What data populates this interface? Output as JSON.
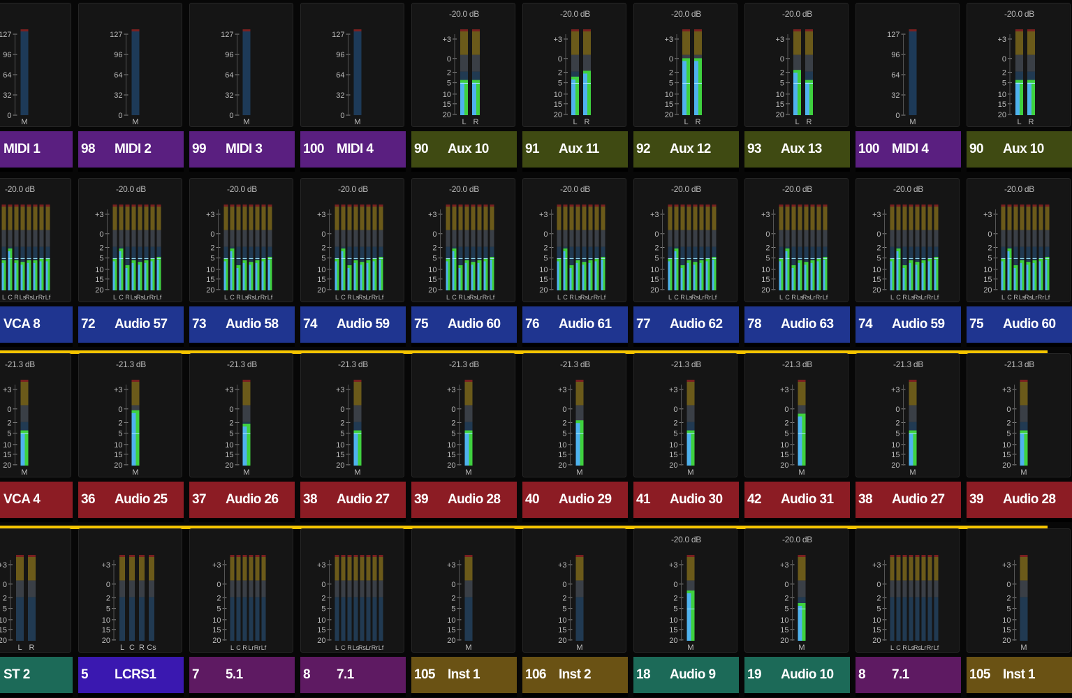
{
  "palette": {
    "purple": "#5a1f80",
    "olive": "#3f4a12",
    "blue": "#1f3590",
    "red": "#8c1c24",
    "green": "#1c6a58",
    "violet": "#3a18b0",
    "magenta": "#5e1a62",
    "gold": "#6a5214",
    "separator": "#f4c400",
    "meter_green": "#3fd13f",
    "meter_cyan": "#4fb2ee"
  },
  "rows": [
    [
      {
        "num": "",
        "name": "MIDI 1",
        "color": "purple",
        "meter": "midi",
        "peak": "",
        "scale": [
          "127",
          "96",
          "64",
          "32",
          "0"
        ],
        "labels": [
          "M"
        ],
        "levels": [
          0
        ]
      },
      {
        "num": "98",
        "name": "MIDI 2",
        "color": "purple",
        "meter": "midi",
        "peak": "",
        "scale": [
          "127",
          "96",
          "64",
          "32",
          "0"
        ],
        "labels": [
          "M"
        ],
        "levels": [
          0
        ]
      },
      {
        "num": "99",
        "name": "MIDI 3",
        "color": "purple",
        "meter": "midi",
        "peak": "",
        "scale": [
          "127",
          "96",
          "64",
          "32",
          "0"
        ],
        "labels": [
          "M"
        ],
        "levels": [
          0
        ]
      },
      {
        "num": "100",
        "name": "MIDI 4",
        "color": "purple",
        "meter": "midi",
        "peak": "",
        "scale": [
          "127",
          "96",
          "64",
          "32",
          "0"
        ],
        "labels": [
          "M"
        ],
        "levels": [
          0
        ]
      },
      {
        "num": "90",
        "name": "Aux 10",
        "color": "olive",
        "meter": "audio",
        "peak": "-20.0 dB",
        "scale": [
          "+3",
          "0",
          "2",
          "5",
          "10",
          "15",
          "20"
        ],
        "labels": [
          "L",
          "R"
        ],
        "levels": [
          0.42,
          0.42
        ]
      },
      {
        "num": "91",
        "name": "Aux 11",
        "color": "olive",
        "meter": "audio",
        "peak": "-20.0 dB",
        "scale": [
          "+3",
          "0",
          "2",
          "5",
          "10",
          "15",
          "20"
        ],
        "labels": [
          "L",
          "R"
        ],
        "levels": [
          0.46,
          0.53
        ]
      },
      {
        "num": "92",
        "name": "Aux 12",
        "color": "olive",
        "meter": "audio",
        "peak": "-20.0 dB",
        "scale": [
          "+3",
          "0",
          "2",
          "5",
          "10",
          "15",
          "20"
        ],
        "labels": [
          "L",
          "R"
        ],
        "levels": [
          0.68,
          0.68
        ]
      },
      {
        "num": "93",
        "name": "Aux 13",
        "color": "olive",
        "meter": "audio",
        "peak": "-20.0 dB",
        "scale": [
          "+3",
          "0",
          "2",
          "5",
          "10",
          "15",
          "20"
        ],
        "labels": [
          "L",
          "R"
        ],
        "levels": [
          0.54,
          0.42
        ]
      },
      {
        "num": "100",
        "name": "MIDI 4",
        "color": "purple",
        "meter": "midi",
        "peak": "",
        "scale": [
          "127",
          "96",
          "64",
          "32",
          "0"
        ],
        "labels": [
          "M"
        ],
        "levels": [
          0
        ]
      },
      {
        "num": "90",
        "name": "Aux 10",
        "color": "olive",
        "meter": "audio",
        "peak": "-20.0 dB",
        "scale": [
          "+3",
          "0",
          "2",
          "5",
          "10",
          "15",
          "20"
        ],
        "labels": [
          "L",
          "R"
        ],
        "levels": [
          0.42,
          0.42
        ]
      }
    ],
    [
      {
        "num": "",
        "name": "VCA 8",
        "color": "blue",
        "meter": "audio",
        "peak": "-20.0 dB",
        "scale": [
          "+3",
          "0",
          "2",
          "5",
          "10",
          "15",
          "20"
        ],
        "labels": [
          "L",
          "C",
          "R",
          "Ls",
          "Rs",
          "Lr",
          "Rr",
          "Lf"
        ],
        "levels": [
          0.36,
          0.5,
          0.36,
          0.34,
          0.36,
          0.36,
          0.38,
          0.38
        ]
      },
      {
        "num": "72",
        "name": "Audio 57",
        "color": "blue",
        "meter": "audio",
        "peak": "-20.0 dB",
        "scale": [
          "+3",
          "0",
          "2",
          "5",
          "10",
          "15",
          "20"
        ],
        "labels": [
          "L",
          "C",
          "R",
          "Ls",
          "Rs",
          "Lr",
          "Rr",
          "Lf"
        ],
        "levels": [
          0.38,
          0.5,
          0.3,
          0.36,
          0.34,
          0.36,
          0.38,
          0.4
        ]
      },
      {
        "num": "73",
        "name": "Audio 58",
        "color": "blue",
        "meter": "audio",
        "peak": "-20.0 dB",
        "scale": [
          "+3",
          "0",
          "2",
          "5",
          "10",
          "15",
          "20"
        ],
        "labels": [
          "L",
          "C",
          "R",
          "Ls",
          "Rs",
          "Lr",
          "Rr",
          "Lf"
        ],
        "levels": [
          0.38,
          0.5,
          0.3,
          0.36,
          0.34,
          0.36,
          0.38,
          0.4
        ]
      },
      {
        "num": "74",
        "name": "Audio 59",
        "color": "blue",
        "meter": "audio",
        "peak": "-20.0 dB",
        "scale": [
          "+3",
          "0",
          "2",
          "5",
          "10",
          "15",
          "20"
        ],
        "labels": [
          "L",
          "C",
          "R",
          "Ls",
          "Rs",
          "Lr",
          "Rr",
          "Lf"
        ],
        "levels": [
          0.38,
          0.5,
          0.3,
          0.36,
          0.34,
          0.36,
          0.38,
          0.4
        ]
      },
      {
        "num": "75",
        "name": "Audio 60",
        "color": "blue",
        "meter": "audio",
        "peak": "-20.0 dB",
        "scale": [
          "+3",
          "0",
          "2",
          "5",
          "10",
          "15",
          "20"
        ],
        "labels": [
          "L",
          "C",
          "R",
          "Ls",
          "Rs",
          "Lr",
          "Rr",
          "Lf"
        ],
        "levels": [
          0.38,
          0.5,
          0.3,
          0.36,
          0.34,
          0.36,
          0.38,
          0.4
        ]
      },
      {
        "num": "76",
        "name": "Audio 61",
        "color": "blue",
        "meter": "audio",
        "peak": "-20.0 dB",
        "scale": [
          "+3",
          "0",
          "2",
          "5",
          "10",
          "15",
          "20"
        ],
        "labels": [
          "L",
          "C",
          "R",
          "Ls",
          "Rs",
          "Lr",
          "Rr",
          "Lf"
        ],
        "levels": [
          0.38,
          0.5,
          0.3,
          0.36,
          0.34,
          0.36,
          0.38,
          0.4
        ]
      },
      {
        "num": "77",
        "name": "Audio 62",
        "color": "blue",
        "meter": "audio",
        "peak": "-20.0 dB",
        "scale": [
          "+3",
          "0",
          "2",
          "5",
          "10",
          "15",
          "20"
        ],
        "labels": [
          "L",
          "C",
          "R",
          "Ls",
          "Rs",
          "Lr",
          "Rr",
          "Lf"
        ],
        "levels": [
          0.38,
          0.5,
          0.3,
          0.36,
          0.34,
          0.36,
          0.38,
          0.4
        ]
      },
      {
        "num": "78",
        "name": "Audio 63",
        "color": "blue",
        "meter": "audio",
        "peak": "-20.0 dB",
        "scale": [
          "+3",
          "0",
          "2",
          "5",
          "10",
          "15",
          "20"
        ],
        "labels": [
          "L",
          "C",
          "R",
          "Ls",
          "Rs",
          "Lr",
          "Rr",
          "Lf"
        ],
        "levels": [
          0.38,
          0.5,
          0.3,
          0.36,
          0.34,
          0.36,
          0.38,
          0.4
        ]
      },
      {
        "num": "74",
        "name": "Audio 59",
        "color": "blue",
        "meter": "audio",
        "peak": "-20.0 dB",
        "scale": [
          "+3",
          "0",
          "2",
          "5",
          "10",
          "15",
          "20"
        ],
        "labels": [
          "L",
          "C",
          "R",
          "Ls",
          "Rs",
          "Lr",
          "Rr",
          "Lf"
        ],
        "levels": [
          0.38,
          0.5,
          0.3,
          0.36,
          0.34,
          0.36,
          0.38,
          0.4
        ]
      },
      {
        "num": "75",
        "name": "Audio 60",
        "color": "blue",
        "meter": "audio",
        "peak": "-20.0 dB",
        "scale": [
          "+3",
          "0",
          "2",
          "5",
          "10",
          "15",
          "20"
        ],
        "labels": [
          "L",
          "C",
          "R",
          "Ls",
          "Rs",
          "Lr",
          "Rr",
          "Lf"
        ],
        "levels": [
          0.38,
          0.5,
          0.3,
          0.36,
          0.34,
          0.36,
          0.38,
          0.4
        ]
      }
    ],
    [
      {
        "num": "",
        "name": "VCA 4",
        "color": "red",
        "meter": "audio",
        "peak": "-21.3 dB",
        "scale": [
          "+3",
          "0",
          "2",
          "5",
          "10",
          "15",
          "20"
        ],
        "labels": [
          "M"
        ],
        "levels": [
          0.42
        ]
      },
      {
        "num": "36",
        "name": "Audio 25",
        "color": "red",
        "meter": "audio",
        "peak": "-21.3 dB",
        "scale": [
          "+3",
          "0",
          "2",
          "5",
          "10",
          "15",
          "20"
        ],
        "labels": [
          "M"
        ],
        "levels": [
          0.66
        ]
      },
      {
        "num": "37",
        "name": "Audio 26",
        "color": "red",
        "meter": "audio",
        "peak": "-21.3 dB",
        "scale": [
          "+3",
          "0",
          "2",
          "5",
          "10",
          "15",
          "20"
        ],
        "labels": [
          "M"
        ],
        "levels": [
          0.5
        ]
      },
      {
        "num": "38",
        "name": "Audio 27",
        "color": "red",
        "meter": "audio",
        "peak": "-21.3 dB",
        "scale": [
          "+3",
          "0",
          "2",
          "5",
          "10",
          "15",
          "20"
        ],
        "labels": [
          "M"
        ],
        "levels": [
          0.42
        ]
      },
      {
        "num": "39",
        "name": "Audio 28",
        "color": "red",
        "meter": "audio",
        "peak": "-21.3 dB",
        "scale": [
          "+3",
          "0",
          "2",
          "5",
          "10",
          "15",
          "20"
        ],
        "labels": [
          "M"
        ],
        "levels": [
          0.42
        ]
      },
      {
        "num": "40",
        "name": "Audio 29",
        "color": "red",
        "meter": "audio",
        "peak": "-21.3 dB",
        "scale": [
          "+3",
          "0",
          "2",
          "5",
          "10",
          "15",
          "20"
        ],
        "labels": [
          "M"
        ],
        "levels": [
          0.54
        ]
      },
      {
        "num": "41",
        "name": "Audio 30",
        "color": "red",
        "meter": "audio",
        "peak": "-21.3 dB",
        "scale": [
          "+3",
          "0",
          "2",
          "5",
          "10",
          "15",
          "20"
        ],
        "labels": [
          "M"
        ],
        "levels": [
          0.42
        ]
      },
      {
        "num": "42",
        "name": "Audio 31",
        "color": "red",
        "meter": "audio",
        "peak": "-21.3 dB",
        "scale": [
          "+3",
          "0",
          "2",
          "5",
          "10",
          "15",
          "20"
        ],
        "labels": [
          "M"
        ],
        "levels": [
          0.62
        ]
      },
      {
        "num": "38",
        "name": "Audio 27",
        "color": "red",
        "meter": "audio",
        "peak": "-21.3 dB",
        "scale": [
          "+3",
          "0",
          "2",
          "5",
          "10",
          "15",
          "20"
        ],
        "labels": [
          "M"
        ],
        "levels": [
          0.42
        ]
      },
      {
        "num": "39",
        "name": "Audio 28",
        "color": "red",
        "meter": "audio",
        "peak": "-21.3 dB",
        "scale": [
          "+3",
          "0",
          "2",
          "5",
          "10",
          "15",
          "20"
        ],
        "labels": [
          "M"
        ],
        "levels": [
          0.42
        ]
      }
    ],
    [
      {
        "num": "",
        "name": "ST 2",
        "color": "green",
        "meter": "audio",
        "peak": "",
        "scale": [
          "+3",
          "0",
          "2",
          "5",
          "10",
          "15",
          "20"
        ],
        "labels": [
          "L",
          "R"
        ],
        "levels": [
          0,
          0
        ]
      },
      {
        "num": "5",
        "name": "LCRS1",
        "color": "violet",
        "meter": "audio",
        "peak": "",
        "scale": [
          "+3",
          "0",
          "2",
          "5",
          "10",
          "15",
          "20"
        ],
        "labels": [
          "L",
          "C",
          "R",
          "Cs"
        ],
        "levels": [
          0,
          0,
          0,
          0
        ]
      },
      {
        "num": "7",
        "name": "5.1",
        "color": "magenta",
        "meter": "audio",
        "peak": "",
        "scale": [
          "+3",
          "0",
          "2",
          "5",
          "10",
          "15",
          "20"
        ],
        "labels": [
          "L",
          "C",
          "R",
          "Lr",
          "Rr",
          "Lf"
        ],
        "levels": [
          0,
          0,
          0,
          0,
          0,
          0
        ]
      },
      {
        "num": "8",
        "name": "7.1",
        "color": "magenta",
        "meter": "audio",
        "peak": "",
        "scale": [
          "+3",
          "0",
          "2",
          "5",
          "10",
          "15",
          "20"
        ],
        "labels": [
          "L",
          "C",
          "R",
          "Ls",
          "Rs",
          "Lr",
          "Rr",
          "Lf"
        ],
        "levels": [
          0,
          0,
          0,
          0,
          0,
          0,
          0,
          0
        ]
      },
      {
        "num": "105",
        "name": "Inst 1",
        "color": "gold",
        "meter": "audio",
        "peak": "",
        "scale": [
          "+3",
          "0",
          "2",
          "5",
          "10",
          "15",
          "20"
        ],
        "labels": [
          "M"
        ],
        "levels": [
          0
        ]
      },
      {
        "num": "106",
        "name": "Inst 2",
        "color": "gold",
        "meter": "audio",
        "peak": "",
        "scale": [
          "+3",
          "0",
          "2",
          "5",
          "10",
          "15",
          "20"
        ],
        "labels": [
          "M"
        ],
        "levels": [
          0
        ]
      },
      {
        "num": "18",
        "name": "Audio 9",
        "color": "green",
        "meter": "audio",
        "peak": "-20.0 dB",
        "scale": [
          "+3",
          "0",
          "2",
          "5",
          "10",
          "15",
          "20"
        ],
        "labels": [
          "M"
        ],
        "levels": [
          0.6
        ]
      },
      {
        "num": "19",
        "name": "Audio 10",
        "color": "green",
        "meter": "audio",
        "peak": "-20.0 dB",
        "scale": [
          "+3",
          "0",
          "2",
          "5",
          "10",
          "15",
          "20"
        ],
        "labels": [
          "M"
        ],
        "levels": [
          0.45
        ]
      },
      {
        "num": "8",
        "name": "7.1",
        "color": "magenta",
        "meter": "audio",
        "peak": "",
        "scale": [
          "+3",
          "0",
          "2",
          "5",
          "10",
          "15",
          "20"
        ],
        "labels": [
          "L",
          "C",
          "R",
          "Ls",
          "Rs",
          "Lr",
          "Rr",
          "Lf"
        ],
        "levels": [
          0,
          0,
          0,
          0,
          0,
          0,
          0,
          0
        ]
      },
      {
        "num": "105",
        "name": "Inst 1",
        "color": "gold",
        "meter": "audio",
        "peak": "",
        "scale": [
          "+3",
          "0",
          "2",
          "5",
          "10",
          "15",
          "20"
        ],
        "labels": [
          "M"
        ],
        "levels": [
          0
        ]
      }
    ]
  ]
}
